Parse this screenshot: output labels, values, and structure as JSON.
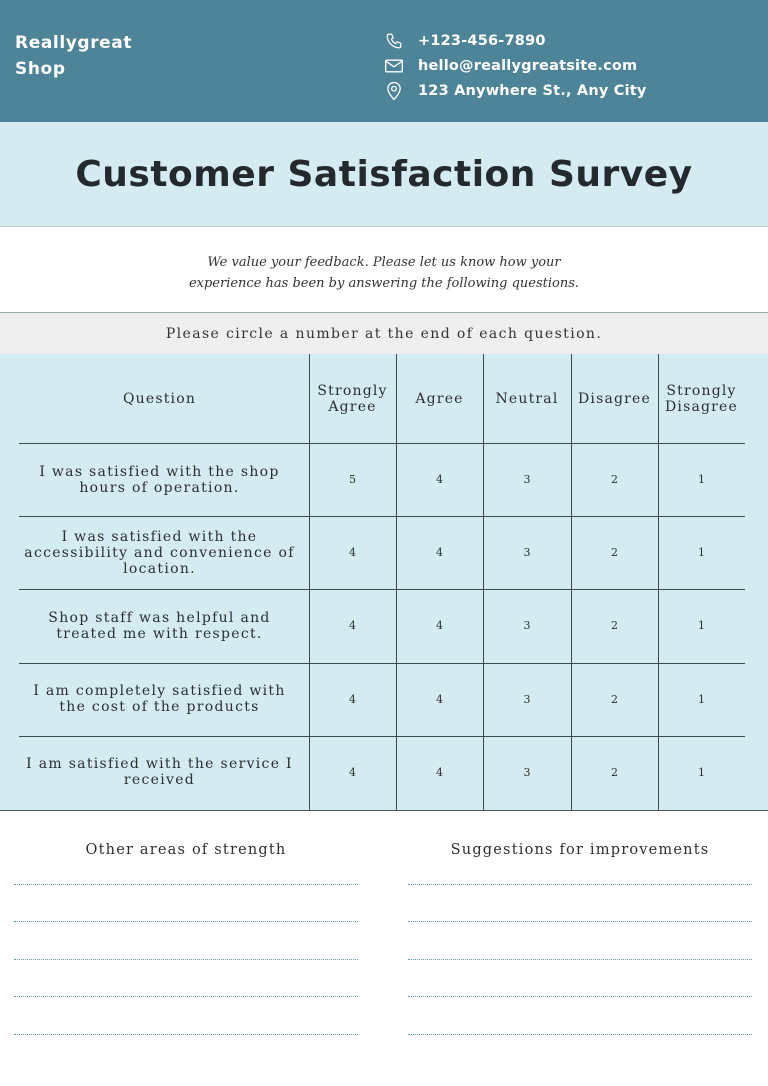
{
  "header": {
    "brand_line1": "Reallygreat",
    "brand_line2": "Shop",
    "phone": "+123-456-7890",
    "email": "hello@reallygreatsite.com",
    "address": "123 Anywhere St., Any City",
    "icons": [
      "phone-icon",
      "mail-icon",
      "location-pin-icon"
    ]
  },
  "title": "Customer Satisfaction Survey",
  "intro": {
    "line1": "We value your feedback. Please let us know how your",
    "line2": "experience has been by answering the following questions."
  },
  "instruction": "Please circle a number at the end of each question.",
  "table": {
    "question_header": "Question",
    "columns": [
      {
        "line1": "Strongly",
        "line2": "Agree"
      },
      {
        "line1": "Agree",
        "line2": ""
      },
      {
        "line1": "Neutral",
        "line2": ""
      },
      {
        "line1": "Disagree",
        "line2": ""
      },
      {
        "line1": "Strongly",
        "line2": "Disagree"
      }
    ],
    "rows": [
      {
        "lines": [
          "I was satisfied with the shop",
          "hours of operation."
        ],
        "scores": [
          "5",
          "4",
          "3",
          "2",
          "1"
        ]
      },
      {
        "lines": [
          "I was satisfied with the",
          "accessibility and convenience of",
          "location."
        ],
        "scores": [
          "4",
          "4",
          "3",
          "2",
          "1"
        ]
      },
      {
        "lines": [
          "Shop staff was helpful and",
          "treated me with respect."
        ],
        "scores": [
          "4",
          "4",
          "3",
          "2",
          "1"
        ]
      },
      {
        "lines": [
          "I am completely satisfied with",
          "the cost of the products"
        ],
        "scores": [
          "4",
          "4",
          "3",
          "2",
          "1"
        ]
      },
      {
        "lines": [
          "I am satisfied with the service I",
          "received"
        ],
        "scores": [
          "4",
          "4",
          "3",
          "2",
          "1"
        ]
      }
    ]
  },
  "bottom": {
    "strength_title": "Other areas of strength",
    "improvement_title": "Suggestions for improvements"
  },
  "colors": {
    "header_bg": "#4e8497",
    "light_blue": "#d4ebf2",
    "instruction_bg": "#efefef",
    "dotted_line": "#5e9aa8"
  }
}
